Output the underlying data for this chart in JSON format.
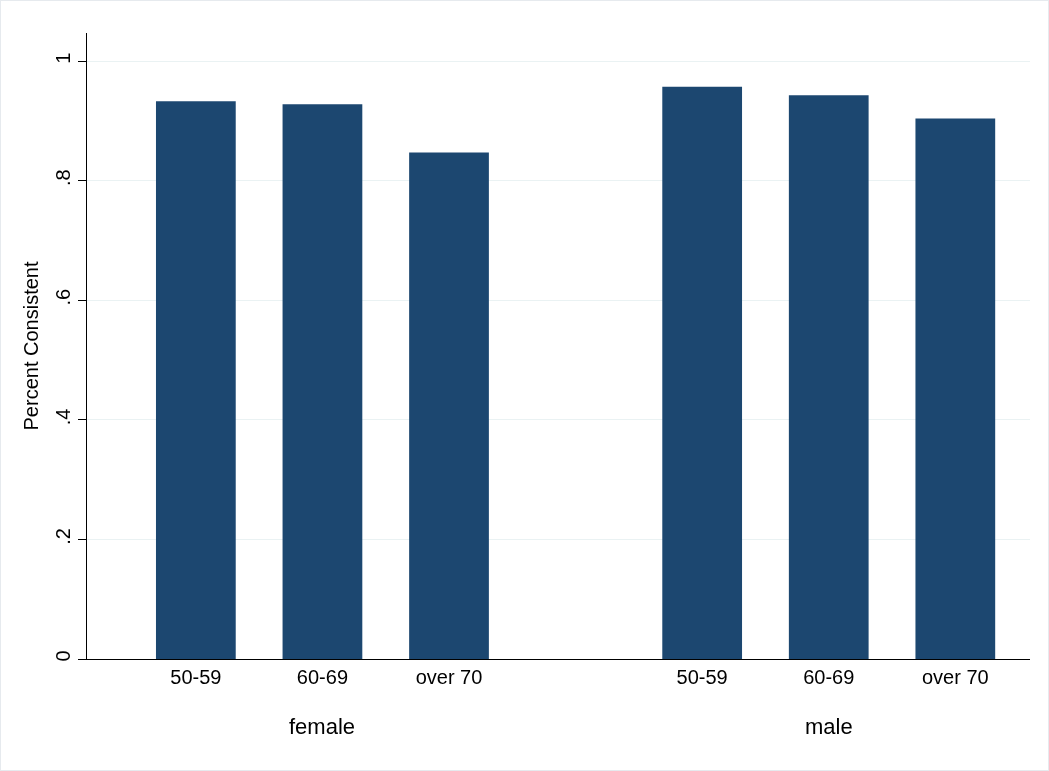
{
  "chart_data": {
    "type": "bar",
    "ylabel": "Percent Consistent",
    "categories": [
      "50-59",
      "60-69",
      "over 70",
      null,
      "50-59",
      "60-69",
      "over 70"
    ],
    "values": [
      0.933,
      0.928,
      0.847,
      null,
      0.957,
      0.943,
      0.904
    ],
    "color": "#1c4770",
    "annotations": [
      "female",
      "male"
    ],
    "ylim": [
      0,
      1.047
    ],
    "yticks": [
      0,
      {
        "value": 0.2,
        "label": ".2"
      },
      {
        "value": 0.4,
        "label": ".4"
      },
      {
        "value": 0.6,
        "label": ".6"
      },
      {
        "value": 0.8,
        "label": ".8"
      },
      1
    ],
    "grid": "y"
  }
}
